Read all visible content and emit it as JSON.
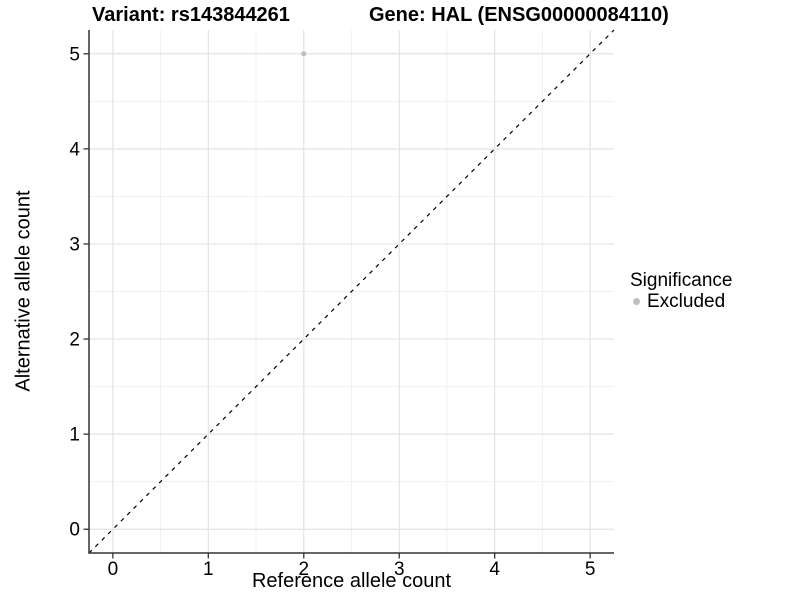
{
  "figure": {
    "title_left": "Variant: rs143844261",
    "title_right": "Gene: HAL (ENSG00000084110)"
  },
  "chart_data": {
    "type": "scatter",
    "title": "Variant: rs143844261   Gene: HAL (ENSG00000084110)",
    "xlabel": "Reference allele count",
    "ylabel": "Alternative allele count",
    "xlim": [
      -0.25,
      5.25
    ],
    "ylim": [
      -0.25,
      5.25
    ],
    "x_ticks": [
      0,
      1,
      2,
      3,
      4,
      5
    ],
    "y_ticks": [
      0,
      1,
      2,
      3,
      4,
      5
    ],
    "minor_ticks": [
      0.5,
      1.5,
      2.5,
      3.5,
      4.5
    ],
    "grid": "major and minor, light grey on white",
    "series": [
      {
        "name": "Excluded",
        "color": "#bfbfbf",
        "point_radius": 2.6,
        "points": [
          [
            2,
            5
          ]
        ]
      }
    ],
    "reference_line": {
      "kind": "identity y=x",
      "from": [
        -0.25,
        -0.25
      ],
      "to": [
        5.25,
        5.25
      ],
      "style": "dashed",
      "color": "#000000"
    },
    "legend": {
      "title": "Significance",
      "position": "right",
      "items": [
        {
          "label": "Excluded",
          "color": "#bfbfbf"
        }
      ]
    }
  },
  "colors": {
    "background": "#ffffff",
    "grid_major": "#e3e3e3",
    "grid_minor": "#f1f1f1",
    "axis_line": "#333333",
    "tick_mark": "#333333",
    "text": "#000000",
    "point": "#bfbfbf"
  }
}
